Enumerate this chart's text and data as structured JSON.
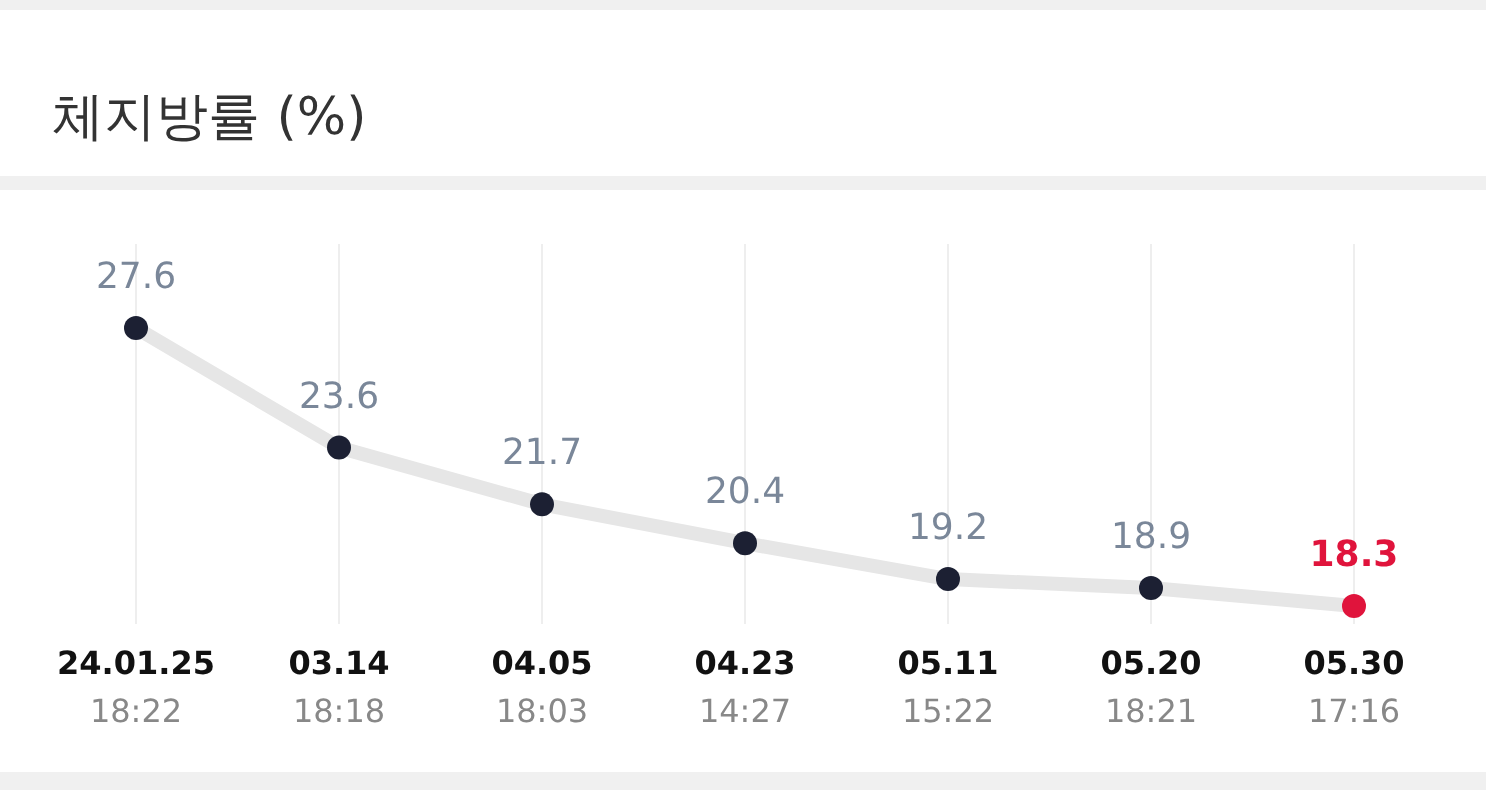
{
  "chart_data": {
    "type": "line",
    "title": "체지방률 (%)",
    "categories": [
      "24.01.25 18:22",
      "03.14 18:18",
      "04.05 18:03",
      "04.23 14:27",
      "05.11 15:22",
      "05.20 18:21",
      "05.30 17:16"
    ],
    "series": [
      {
        "color": "#e6e6e6",
        "values": [
          27.6,
          23.6,
          21.7,
          20.4,
          19.2,
          18.9,
          18.3
        ],
        "colors": [
          "#1c2033",
          "#1c2033",
          "#1c2033",
          "#1c2033",
          "#1c2033",
          "#1c2033",
          "#e0143c"
        ]
      }
    ],
    "data_labels": true,
    "grid": "x",
    "marker": "circle",
    "line_style": "solid"
  }
}
